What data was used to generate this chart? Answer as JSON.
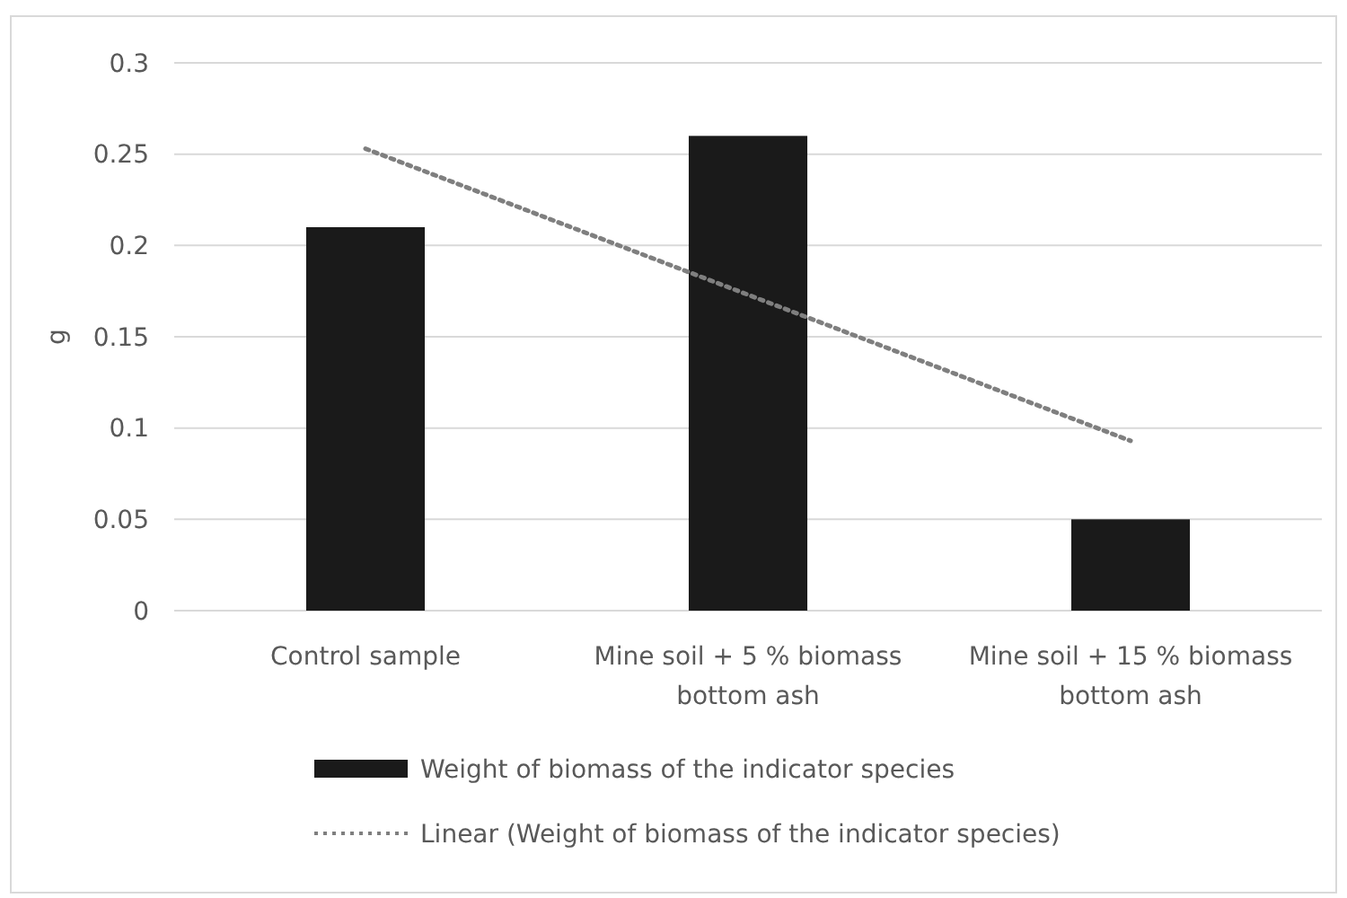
{
  "chart_data": {
    "type": "bar",
    "ylabel": "g",
    "categories": [
      "Control sample",
      "Mine soil + 5 % biomass bottom ash",
      "Mine soil + 15 % biomass bottom ash"
    ],
    "series": [
      {
        "name": "Weight of biomass of the indicator species",
        "color": "#1a1a1a",
        "values": [
          0.21,
          0.26,
          0.05
        ]
      },
      {
        "name": "Linear (Weight of biomass of the indicator species)",
        "type": "line",
        "color": "#7f7f7f",
        "line_style": "dotted",
        "marker": "none",
        "values": [
          0.253,
          0.173,
          0.093
        ]
      }
    ],
    "ylim": [
      0,
      0.3
    ],
    "yticks": [
      0,
      0.05,
      0.1,
      0.15,
      0.2,
      0.25,
      0.3
    ],
    "grid": "y",
    "legend": "bottom"
  }
}
